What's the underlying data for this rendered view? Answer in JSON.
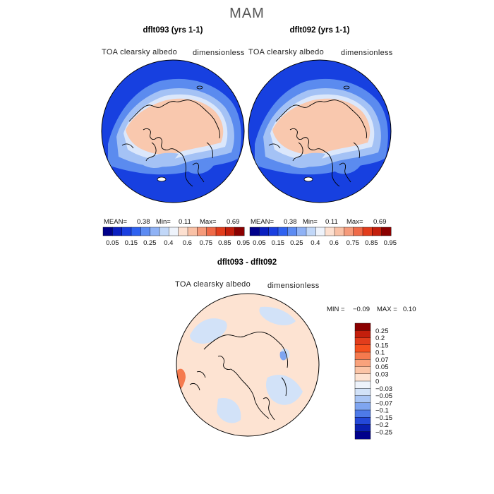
{
  "figure": {
    "season": "MAM"
  },
  "panels": [
    {
      "title": "dflt093 (yrs 1-1)",
      "variable": "TOA clearsky albedo",
      "units": "dimensionless",
      "stats": {
        "mean_label": "MEAN=",
        "mean": "0.38",
        "min_label": "Min=",
        "min": "0.11",
        "max_label": "Max=",
        "max": "0.69"
      }
    },
    {
      "title": "dflt092 (yrs 1-1)",
      "variable": "TOA clearsky albedo",
      "units": "dimensionless",
      "stats": {
        "mean_label": "MEAN=",
        "mean": "0.38",
        "min_label": "Min=",
        "min": "0.11",
        "max_label": "Max=",
        "max": "0.69"
      }
    },
    {
      "title": "dflt093 - dflt092",
      "variable": "TOA clearsky albedo",
      "units": "dimensionless",
      "stats": {
        "min_label": "MIN =",
        "min": "−0.09",
        "max_label": "MAX =",
        "max": "0.10"
      }
    }
  ],
  "colorbar_abs": {
    "ticks": [
      "0.05",
      "0.15",
      "0.25",
      "0.4",
      "0.6",
      "0.75",
      "0.85",
      "0.95"
    ],
    "colors": [
      "#00008b",
      "#0a1fc0",
      "#1a3fe0",
      "#2f62f0",
      "#5c8bf2",
      "#8fb2f5",
      "#c1d7f8",
      "#eef3fb",
      "#fde0d0",
      "#f9c1a6",
      "#f59a7a",
      "#ef6a48",
      "#e23d1c",
      "#c41f0c",
      "#8b0000"
    ]
  },
  "colorbar_diff": {
    "ticks": [
      "0.25",
      "0.2",
      "0.15",
      "0.1",
      "0.07",
      "0.05",
      "0.03",
      "0",
      "−0.03",
      "−0.05",
      "−0.07",
      "−0.1",
      "−0.15",
      "−0.2",
      "−0.25"
    ],
    "colors": [
      "#8b0000",
      "#c41f0c",
      "#e23d1c",
      "#f5501e",
      "#f57a4e",
      "#f9a27c",
      "#fbc4a6",
      "#fde3d2",
      "#eef3fb",
      "#d2e2f8",
      "#a9c5f5",
      "#7fa5f0",
      "#4e7ae8",
      "#2448d8",
      "#0a1fb0",
      "#00008b"
    ]
  },
  "map_colors": {
    "ocean": "#1740e0",
    "mid": "#5b8bef",
    "light": "#a4c2f5",
    "pale": "#dbe7fb",
    "ice": "#f9c8ae",
    "diff_base": "#fde3d2",
    "diff_neg": "#d2e2f8",
    "diff_pos": "#f57a4e"
  }
}
